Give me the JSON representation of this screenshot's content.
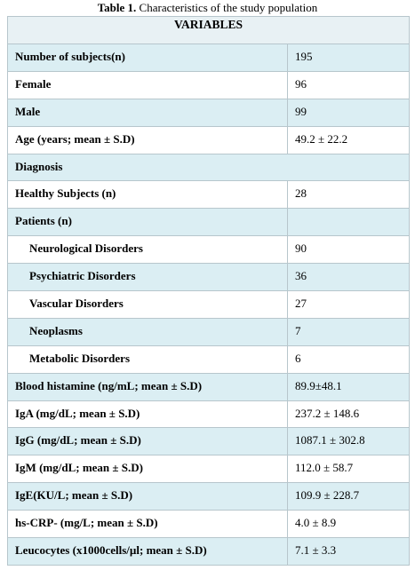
{
  "title": {
    "label": "Table 1.",
    "text": "Characteristics of the study population"
  },
  "table": {
    "header": "VARIABLES",
    "rows": [
      {
        "label": "Number of subjects(n)",
        "value": "195"
      },
      {
        "label": "Female",
        "value": "96"
      },
      {
        "label": "Male",
        "value": "99"
      },
      {
        "label": "Age (years; mean ± S.D)",
        "value": "49.2 ± 22.2"
      },
      {
        "label": "Diagnosis",
        "span": true
      },
      {
        "label": "Healthy Subjects (n)",
        "value": "28"
      },
      {
        "label": "Patients (n)"
      },
      {
        "label": "Neurological Disorders",
        "value": "90",
        "indent": true
      },
      {
        "label": "Psychiatric Disorders",
        "value": "36",
        "indent": true
      },
      {
        "label": "Vascular Disorders",
        "value": "27",
        "indent": true
      },
      {
        "label": "Neoplasms",
        "value": "7",
        "indent": true
      },
      {
        "label": "Metabolic Disorders",
        "value": "6",
        "indent": true
      },
      {
        "label": "Blood histamine (ng/mL; mean ± S.D)",
        "value": "89.9±48.1"
      },
      {
        "label": "IgA (mg/dL; mean ± S.D)",
        "value": "237.2 ± 148.6"
      },
      {
        "label": "IgG (mg/dL; mean ± S.D)",
        "value": "1087.1 ± 302.8"
      },
      {
        "label": "IgM (mg/dL; mean ± S.D)",
        "value": "112.0 ± 58.7"
      },
      {
        "label": "IgE(KU/L; mean ± S.D)",
        "value": "109.9 ± 228.7"
      },
      {
        "label": "hs-CRP- (mg/L; mean ± S.D)",
        "value": "4.0 ± 8.9"
      },
      {
        "label": "Leucocytes (x1000cells/µl; mean ± S.D)",
        "value": "7.1 ± 3.3"
      }
    ]
  }
}
